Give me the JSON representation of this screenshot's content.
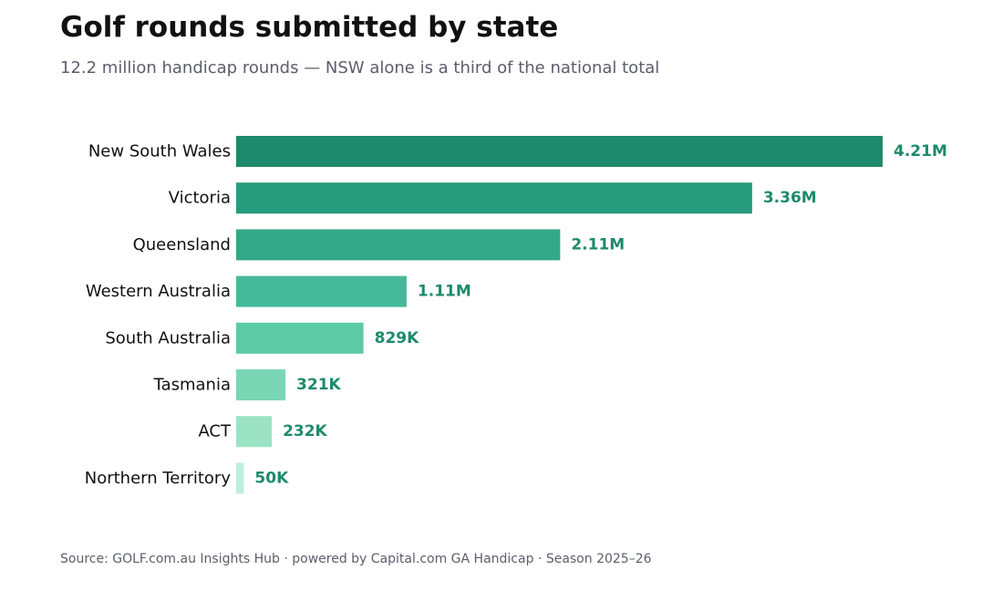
{
  "chart_data": {
    "type": "bar",
    "orientation": "horizontal",
    "title": "Golf rounds submitted by state",
    "subtitle": "12.2 million handicap rounds — NSW alone is a third of the national total",
    "categories": [
      "New South Wales",
      "Victoria",
      "Queensland",
      "Western Australia",
      "South Australia",
      "Tasmania",
      "ACT",
      "Northern Territory"
    ],
    "values": [
      4210000,
      3360000,
      2110000,
      1110000,
      829000,
      321000,
      232000,
      50000
    ],
    "data_labels": [
      "4.21M",
      "3.36M",
      "2.11M",
      "1.11M",
      "829K",
      "321K",
      "232K",
      "50K"
    ],
    "bar_colors": [
      "#1e8a6c",
      "#279b7c",
      "#33a887",
      "#46b998",
      "#5ccba5",
      "#7bd6b5",
      "#9ce3c5",
      "#bdf0da"
    ],
    "label_color": "#1e8a6c",
    "xlim": [
      0,
      4210000
    ],
    "grid": false,
    "legend": "none"
  },
  "source": "Source: GOLF.com.au Insights Hub  ·  powered by Capital.com GA Handicap  ·  Season 2025–26"
}
